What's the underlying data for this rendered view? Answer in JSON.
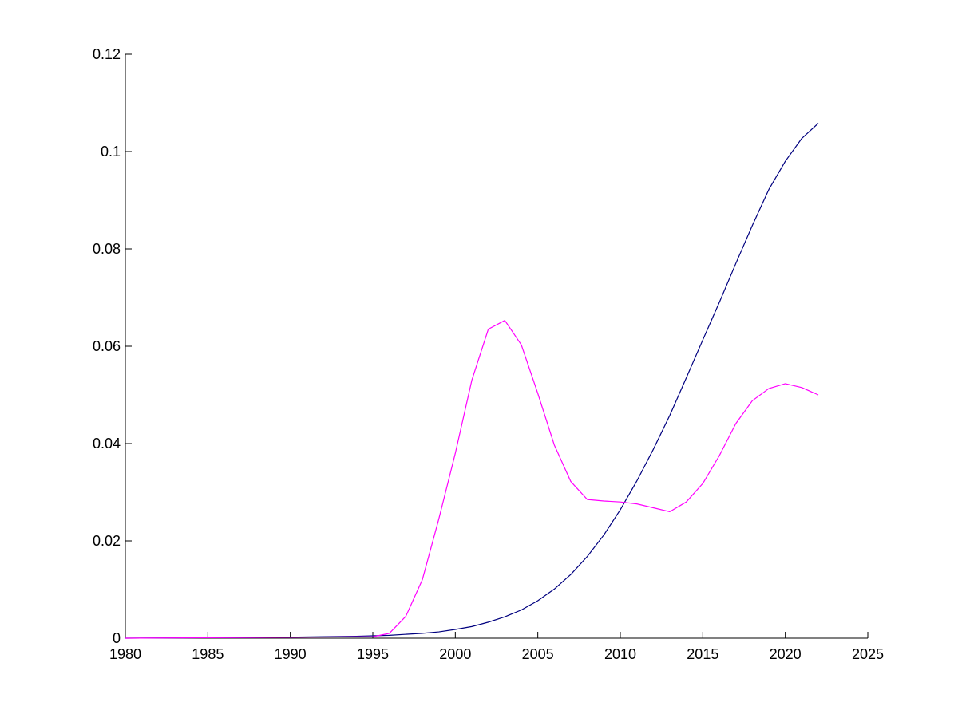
{
  "chart_data": {
    "type": "line",
    "title": "",
    "xlabel": "",
    "ylabel": "",
    "xlim": [
      1980,
      2025
    ],
    "ylim": [
      0,
      0.12
    ],
    "grid": false,
    "x_ticks": [
      1980,
      1985,
      1990,
      1995,
      2000,
      2005,
      2010,
      2015,
      2020,
      2025
    ],
    "y_ticks": [
      0,
      0.02,
      0.04,
      0.06,
      0.08,
      0.1,
      0.12
    ],
    "x_tick_labels": [
      "1980",
      "1985",
      "1990",
      "1995",
      "2000",
      "2005",
      "2010",
      "2015",
      "2020",
      "2025"
    ],
    "y_tick_labels": [
      "0",
      "0.02",
      "0.04",
      "0.06",
      "0.08",
      "0.1",
      "0.12"
    ],
    "series": [
      {
        "color": "#00007f",
        "x": [
          1980,
          1985,
          1990,
          1994,
          1996,
          1998,
          1999,
          2000,
          2001,
          2002,
          2003,
          2004,
          2005,
          2006,
          2007,
          2008,
          2009,
          2010,
          2011,
          2012,
          2013,
          2014,
          2015,
          2016,
          2017,
          2018,
          2019,
          2020,
          2021,
          2022
        ],
        "values": [
          0.0,
          0.0001,
          0.0002,
          0.0004,
          0.0006,
          0.001,
          0.0013,
          0.0018,
          0.0024,
          0.0033,
          0.0044,
          0.0058,
          0.0077,
          0.0101,
          0.0131,
          0.0168,
          0.0212,
          0.0264,
          0.0323,
          0.0388,
          0.0458,
          0.0535,
          0.0613,
          0.069,
          0.077,
          0.0848,
          0.0922,
          0.098,
          0.1027,
          0.1058
        ]
      },
      {
        "color": "#ff00ff",
        "x": [
          1980,
          1985,
          1990,
          1995,
          1996,
          1997,
          1998,
          1999,
          2000,
          2001,
          2002,
          2003,
          2004,
          2005,
          2006,
          2007,
          2008,
          2009,
          2010,
          2011,
          2012,
          2013,
          2014,
          2015,
          2016,
          2017,
          2018,
          2019,
          2020,
          2021,
          2022
        ],
        "values": [
          0.0,
          0.0001,
          0.0002,
          0.0003,
          0.001,
          0.0045,
          0.012,
          0.0245,
          0.038,
          0.053,
          0.0635,
          0.0653,
          0.0603,
          0.0503,
          0.0397,
          0.0322,
          0.0285,
          0.0282,
          0.028,
          0.0276,
          0.0268,
          0.026,
          0.028,
          0.0318,
          0.0375,
          0.0441,
          0.0488,
          0.0513,
          0.0523,
          0.0515,
          0.05
        ]
      }
    ]
  }
}
